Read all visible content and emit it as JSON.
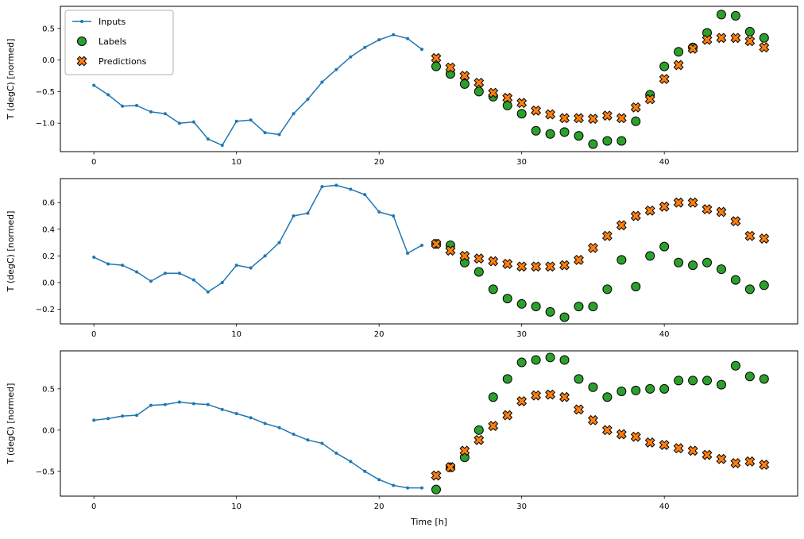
{
  "figure": {
    "xlabel": "Time [h]",
    "ylabel": "T (degC) [normed]"
  },
  "colors": {
    "inputs_line": "#1f77b4",
    "labels_face": "#2ca02c",
    "predictions_face": "#ff7f0e",
    "marker_edge": "#000000",
    "spine": "#000000",
    "legend_border": "#b0b0b0",
    "background": "#ffffff"
  },
  "legend": {
    "items": [
      "Inputs",
      "Labels",
      "Predictions"
    ]
  },
  "chart_data": [
    {
      "type": "line",
      "title": "",
      "xlabel": "",
      "ylabel": "T (degC) [normed]",
      "xlim": [
        -2.35,
        49.35
      ],
      "ylim": [
        -1.45,
        0.85
      ],
      "xticks": [
        0,
        10,
        20,
        30,
        40
      ],
      "yticks": [
        0.5,
        0.0,
        -0.5,
        -1.0
      ],
      "legend": true,
      "series": [
        {
          "name": "Inputs",
          "type": "line",
          "x": [
            0,
            1,
            2,
            3,
            4,
            5,
            6,
            7,
            8,
            9,
            10,
            11,
            12,
            13,
            14,
            15,
            16,
            17,
            18,
            19,
            20,
            21,
            22,
            23
          ],
          "y": [
            -0.4,
            -0.55,
            -0.73,
            -0.72,
            -0.82,
            -0.85,
            -1.0,
            -0.98,
            -1.25,
            -1.35,
            -0.97,
            -0.95,
            -1.15,
            -1.18,
            -0.85,
            -0.62,
            -0.35,
            -0.15,
            0.05,
            0.2,
            0.32,
            0.4,
            0.34,
            0.17
          ]
        },
        {
          "name": "Labels",
          "type": "circle",
          "x": [
            24,
            25,
            26,
            27,
            28,
            29,
            30,
            31,
            32,
            33,
            34,
            35,
            36,
            37,
            38,
            39,
            40,
            41,
            42,
            43,
            44,
            45,
            46,
            47
          ],
          "y": [
            -0.1,
            -0.22,
            -0.38,
            -0.5,
            -0.58,
            -0.72,
            -0.85,
            -1.12,
            -1.17,
            -1.14,
            -1.2,
            -1.33,
            -1.28,
            -1.28,
            -0.97,
            -0.55,
            -0.1,
            0.13,
            0.2,
            0.43,
            0.72,
            0.7,
            0.45,
            0.35
          ]
        },
        {
          "name": "Predictions",
          "type": "x",
          "x": [
            24,
            25,
            26,
            27,
            28,
            29,
            30,
            31,
            32,
            33,
            34,
            35,
            36,
            37,
            38,
            39,
            40,
            41,
            42,
            43,
            44,
            45,
            46,
            47
          ],
          "y": [
            0.03,
            -0.12,
            -0.25,
            -0.36,
            -0.52,
            -0.6,
            -0.68,
            -0.8,
            -0.86,
            -0.92,
            -0.92,
            -0.93,
            -0.88,
            -0.92,
            -0.75,
            -0.62,
            -0.3,
            -0.08,
            0.18,
            0.32,
            0.35,
            0.35,
            0.3,
            0.2
          ]
        }
      ]
    },
    {
      "type": "line",
      "title": "",
      "xlabel": "",
      "ylabel": "T (degC) [normed]",
      "xlim": [
        -2.35,
        49.35
      ],
      "ylim": [
        -0.31,
        0.78
      ],
      "xticks": [
        0,
        10,
        20,
        30,
        40
      ],
      "yticks": [
        0.6,
        0.4,
        0.2,
        0.0,
        -0.2
      ],
      "legend": false,
      "series": [
        {
          "name": "Inputs",
          "type": "line",
          "x": [
            0,
            1,
            2,
            3,
            4,
            5,
            6,
            7,
            8,
            9,
            10,
            11,
            12,
            13,
            14,
            15,
            16,
            17,
            18,
            19,
            20,
            21,
            22,
            23
          ],
          "y": [
            0.19,
            0.14,
            0.13,
            0.08,
            0.01,
            0.07,
            0.07,
            0.02,
            -0.07,
            0.0,
            0.13,
            0.11,
            0.2,
            0.3,
            0.5,
            0.52,
            0.72,
            0.73,
            0.7,
            0.66,
            0.53,
            0.5,
            0.22,
            0.28
          ]
        },
        {
          "name": "Labels",
          "type": "circle",
          "x": [
            24,
            25,
            26,
            27,
            28,
            29,
            30,
            31,
            32,
            33,
            34,
            35,
            36,
            37,
            38,
            39,
            40,
            41,
            42,
            43,
            44,
            45,
            46,
            47
          ],
          "y": [
            0.29,
            0.28,
            0.15,
            0.08,
            -0.05,
            -0.12,
            -0.16,
            -0.18,
            -0.22,
            -0.26,
            -0.18,
            -0.18,
            -0.05,
            0.17,
            -0.03,
            0.2,
            0.27,
            0.15,
            0.13,
            0.15,
            0.1,
            0.02,
            -0.05,
            -0.02
          ]
        },
        {
          "name": "Predictions",
          "type": "x",
          "x": [
            24,
            25,
            26,
            27,
            28,
            29,
            30,
            31,
            32,
            33,
            34,
            35,
            36,
            37,
            38,
            39,
            40,
            41,
            42,
            43,
            44,
            45,
            46,
            47
          ],
          "y": [
            0.29,
            0.24,
            0.2,
            0.18,
            0.16,
            0.14,
            0.12,
            0.12,
            0.12,
            0.13,
            0.17,
            0.26,
            0.35,
            0.43,
            0.5,
            0.54,
            0.57,
            0.6,
            0.6,
            0.55,
            0.53,
            0.46,
            0.35,
            0.33
          ]
        }
      ]
    },
    {
      "type": "line",
      "title": "",
      "xlabel": "Time [h]",
      "ylabel": "T (degC) [normed]",
      "xlim": [
        -2.35,
        49.35
      ],
      "ylim": [
        -0.8,
        0.96
      ],
      "xticks": [
        0,
        10,
        20,
        30,
        40
      ],
      "yticks": [
        0.5,
        0.0,
        -0.5
      ],
      "legend": false,
      "series": [
        {
          "name": "Inputs",
          "type": "line",
          "x": [
            0,
            1,
            2,
            3,
            4,
            5,
            6,
            7,
            8,
            9,
            10,
            11,
            12,
            13,
            14,
            15,
            16,
            17,
            18,
            19,
            20,
            21,
            22,
            23
          ],
          "y": [
            0.12,
            0.14,
            0.17,
            0.18,
            0.3,
            0.31,
            0.34,
            0.32,
            0.31,
            0.25,
            0.2,
            0.15,
            0.08,
            0.03,
            -0.05,
            -0.12,
            -0.16,
            -0.28,
            -0.38,
            -0.5,
            -0.6,
            -0.67,
            -0.7,
            -0.7
          ]
        },
        {
          "name": "Labels",
          "type": "circle",
          "x": [
            24,
            25,
            26,
            27,
            28,
            29,
            30,
            31,
            32,
            33,
            34,
            35,
            36,
            37,
            38,
            39,
            40,
            41,
            42,
            43,
            44,
            45,
            46,
            47
          ],
          "y": [
            -0.72,
            -0.45,
            -0.33,
            0.0,
            0.4,
            0.62,
            0.82,
            0.85,
            0.88,
            0.85,
            0.62,
            0.52,
            0.4,
            0.47,
            0.48,
            0.5,
            0.5,
            0.6,
            0.6,
            0.6,
            0.55,
            0.78,
            0.65,
            0.62
          ]
        },
        {
          "name": "Predictions",
          "type": "x",
          "x": [
            24,
            25,
            26,
            27,
            28,
            29,
            30,
            31,
            32,
            33,
            34,
            35,
            36,
            37,
            38,
            39,
            40,
            41,
            42,
            43,
            44,
            45,
            46,
            47
          ],
          "y": [
            -0.55,
            -0.45,
            -0.25,
            -0.12,
            0.05,
            0.18,
            0.35,
            0.42,
            0.43,
            0.4,
            0.25,
            0.12,
            0.0,
            -0.05,
            -0.08,
            -0.15,
            -0.18,
            -0.22,
            -0.25,
            -0.3,
            -0.35,
            -0.4,
            -0.38,
            -0.42
          ]
        }
      ]
    }
  ]
}
